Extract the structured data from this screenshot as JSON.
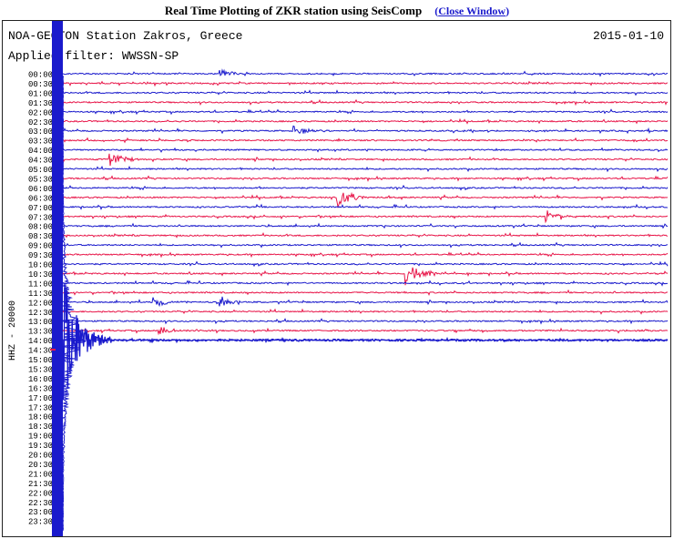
{
  "header": {
    "title": "Real Time Plotting of ZKR station using SeisComp",
    "close_open": "(",
    "close_label": "Close Window",
    "close_close": ")"
  },
  "chart_data": {
    "type": "line",
    "title": "NOA-GEOTON Station Zakros, Greece",
    "subtitle": "Applied filter: WWSSN-SP",
    "date": "2015-01-10",
    "ylabel": "HHZ - 20000",
    "row_labels": [
      "00:00",
      "00:30",
      "01:00",
      "01:30",
      "02:00",
      "02:30",
      "03:00",
      "03:30",
      "04:00",
      "04:30",
      "05:00",
      "05:30",
      "06:00",
      "06:30",
      "07:00",
      "07:30",
      "08:00",
      "08:30",
      "09:00",
      "09:30",
      "10:00",
      "10:30",
      "11:00",
      "11:30",
      "12:00",
      "12:30",
      "13:00",
      "13:30",
      "14:00",
      "14:30",
      "15:00",
      "15:30",
      "16:00",
      "16:30",
      "17:00",
      "17:30",
      "18:00",
      "18:30",
      "19:00",
      "19:30",
      "20:00",
      "20:30",
      "21:00",
      "21:30",
      "22:00",
      "22:30",
      "23:00",
      "23:30"
    ],
    "series_colors": [
      "#1a1acc",
      "#e8174a"
    ],
    "recorded_rows": 30,
    "events": [
      {
        "row": "00:00",
        "time_fraction": 0.27,
        "relative_amplitude": 0.5
      },
      {
        "row": "03:00",
        "time_fraction": 0.39,
        "relative_amplitude": 0.6
      },
      {
        "row": "04:30",
        "time_fraction": 0.09,
        "relative_amplitude": 0.9
      },
      {
        "row": "06:30",
        "time_fraction": 0.46,
        "relative_amplitude": 1.6
      },
      {
        "row": "07:30",
        "time_fraction": 0.8,
        "relative_amplitude": 0.9
      },
      {
        "row": "10:30",
        "time_fraction": 0.57,
        "relative_amplitude": 1.8
      },
      {
        "row": "12:00",
        "time_fraction": 0.16,
        "relative_amplitude": 0.7
      },
      {
        "row": "12:00",
        "time_fraction": 0.27,
        "relative_amplitude": 0.6
      },
      {
        "row": "13:30",
        "time_fraction": 0.17,
        "relative_amplitude": 0.6
      },
      {
        "row": "14:00",
        "time_fraction": 0.0,
        "relative_amplitude": 6.0
      }
    ]
  }
}
